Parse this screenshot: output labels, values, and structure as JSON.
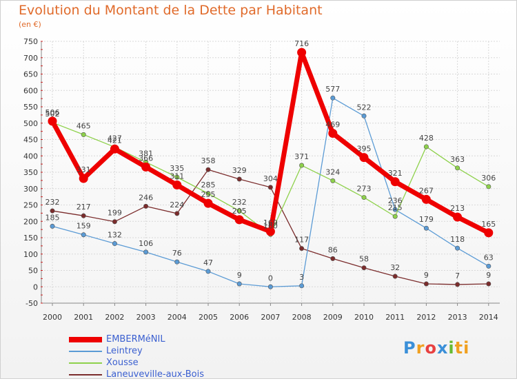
{
  "header": {
    "title": "Evolution du Montant de la Dette par Habitant",
    "unit": "(en €)"
  },
  "logo": {
    "text": "Proxiti",
    "letters": [
      "P",
      "r",
      "o",
      "x",
      "i",
      "ti"
    ]
  },
  "chart_data": {
    "type": "line",
    "x": [
      "2000",
      "2001",
      "2002",
      "2003",
      "2004",
      "2005",
      "2006",
      "2007",
      "2008",
      "2009",
      "2010",
      "2011",
      "2012",
      "2013",
      "2014"
    ],
    "ylim": [
      -50,
      750
    ],
    "yticks": [
      -50,
      0,
      50,
      100,
      150,
      200,
      250,
      300,
      350,
      400,
      450,
      500,
      550,
      600,
      650,
      700,
      750
    ],
    "grid": true,
    "legend_position": "bottom-left",
    "series": [
      {
        "name": "EMBERMéNIL",
        "color": "#ee0000",
        "values": [
          506,
          331,
          421,
          366,
          311,
          255,
          205,
          169,
          716,
          469,
          395,
          321,
          267,
          213,
          165
        ],
        "labels": [
          "506",
          "331",
          "421",
          "366",
          "311",
          "255",
          "205",
          "169",
          "716",
          "469",
          "395",
          "321",
          "267",
          "213",
          "165"
        ]
      },
      {
        "name": "Leintrey",
        "color": "#5b9bd5",
        "values": [
          185,
          159,
          132,
          106,
          76,
          47,
          9,
          0,
          3,
          577,
          522,
          236,
          179,
          118,
          63
        ],
        "labels": [
          "185",
          "159",
          "132",
          "106",
          "76",
          "47",
          "9",
          "0",
          "3",
          "577",
          "522",
          "236",
          "179",
          "118",
          "63"
        ]
      },
      {
        "name": "Xousse",
        "color": "#8ed14b",
        "values": [
          502,
          465,
          427,
          381,
          335,
          285,
          232,
          160,
          371,
          324,
          273,
          215,
          428,
          363,
          306
        ],
        "labels": [
          "502",
          "465",
          "427",
          "381",
          "335",
          "285",
          "232",
          "160",
          "371",
          "324",
          "273",
          "215",
          "428",
          "363",
          "306"
        ]
      },
      {
        "name": "Laneuveville-aux-Bois",
        "color": "#7b2c2c",
        "values": [
          232,
          217,
          199,
          246,
          224,
          358,
          329,
          304,
          117,
          86,
          58,
          32,
          9,
          7,
          9
        ],
        "labels": [
          "232",
          "217",
          "199",
          "246",
          "224",
          "358",
          "329",
          "304",
          "117",
          "86",
          "58",
          "32",
          "9",
          "7",
          "9"
        ]
      }
    ]
  }
}
